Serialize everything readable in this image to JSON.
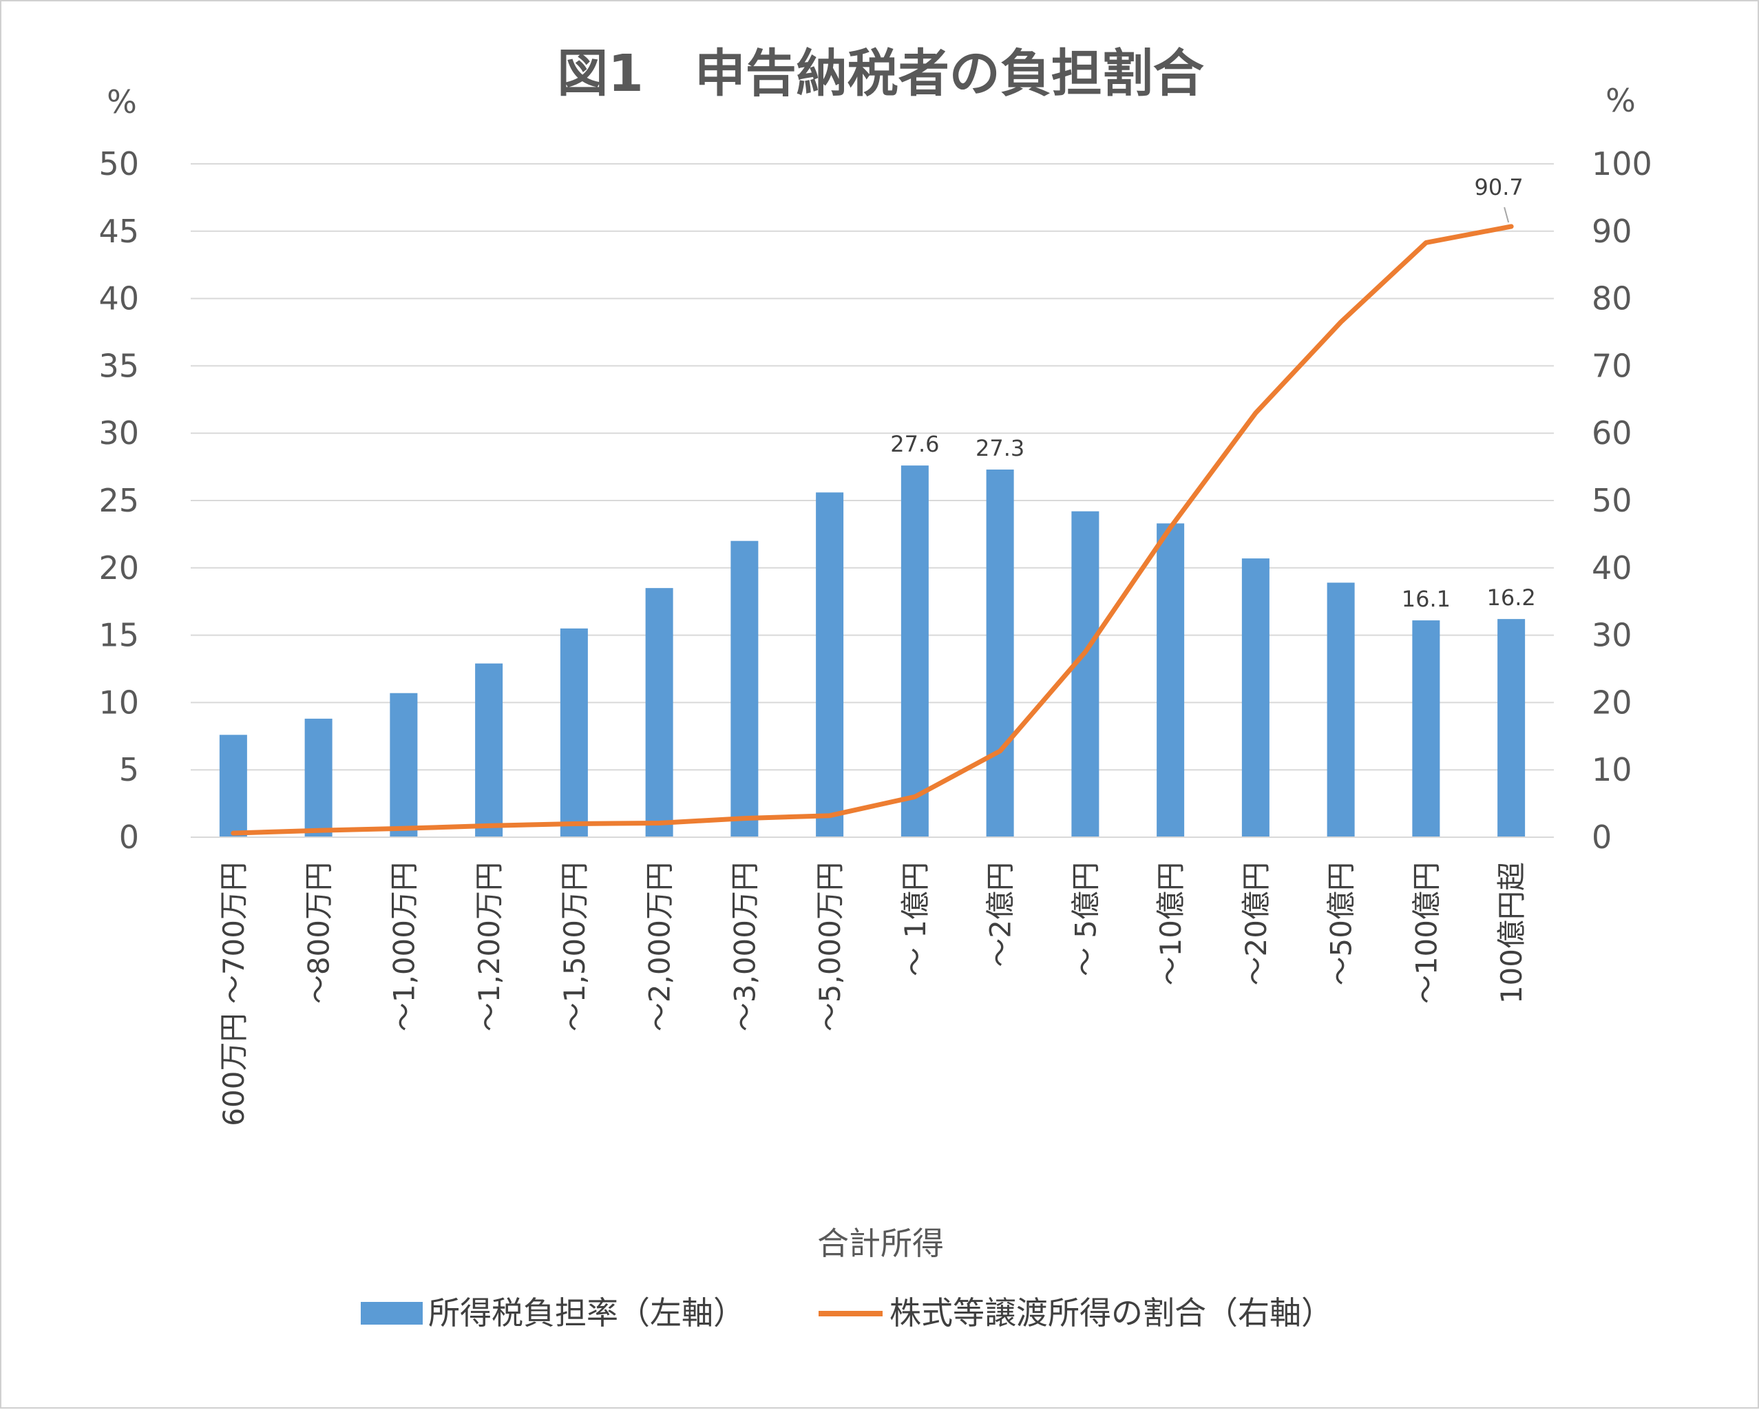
{
  "chart_data": {
    "type": "bar",
    "title": "図1　申告納税者の負担割合",
    "xlabel": "合計所得",
    "y_left_unit": "%",
    "y_right_unit": "%",
    "y_left_lim": [
      0,
      50
    ],
    "y_right_lim": [
      0,
      100
    ],
    "y_left_ticks": [
      "0",
      "5",
      "10",
      "15",
      "20",
      "25",
      "30",
      "35",
      "40",
      "45",
      "50"
    ],
    "y_right_ticks": [
      "0",
      "10",
      "20",
      "30",
      "40",
      "50",
      "60",
      "70",
      "80",
      "90",
      "100"
    ],
    "grid": true,
    "legend_position": "bottom",
    "categories": [
      "600万円 ～700万円",
      "～800万円",
      "～1,000万円",
      "～1,200万円",
      "～1,500万円",
      "～2,000万円",
      "～3,000万円",
      "～5,000万円",
      "～ 1億円",
      "～2億円",
      "～ 5億円",
      "～10億円",
      "～20億円",
      "～50億円",
      "～100億円",
      "100億円超"
    ],
    "series": [
      {
        "name": "所得税負担率（左軸）",
        "type": "bar",
        "axis": "left",
        "color": "#5b9bd5",
        "values": [
          7.6,
          8.8,
          10.7,
          12.9,
          15.5,
          18.5,
          22.0,
          25.6,
          27.6,
          27.3,
          24.2,
          23.3,
          20.7,
          18.9,
          16.1,
          16.2
        ],
        "labels": [
          "",
          "",
          "",
          "",
          "",
          "",
          "",
          "",
          "27.6",
          "27.3",
          "",
          "",
          "",
          "",
          "16.1",
          "16.2"
        ]
      },
      {
        "name": "株式等譲渡所得の割合（右軸）",
        "type": "line",
        "axis": "right",
        "color": "#ed7d31",
        "values": [
          0.6,
          1.0,
          1.3,
          1.7,
          2.0,
          2.1,
          2.8,
          3.2,
          6.0,
          12.8,
          27.5,
          46.0,
          63.0,
          76.5,
          88.3,
          90.7
        ],
        "labels": [
          "",
          "",
          "",
          "",
          "",
          "",
          "",
          "",
          "",
          "",
          "",
          "",
          "",
          "",
          "",
          "90.7"
        ]
      }
    ]
  }
}
